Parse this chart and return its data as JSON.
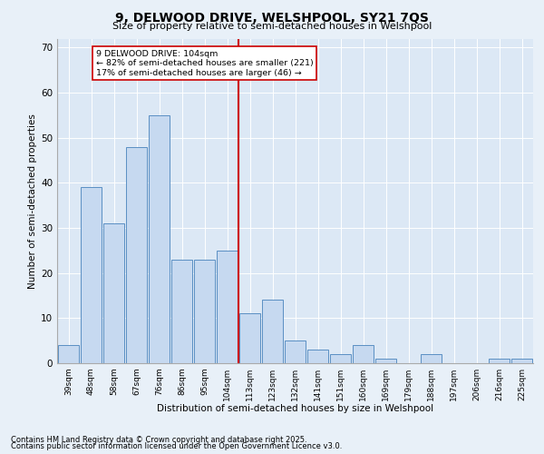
{
  "title1": "9, DELWOOD DRIVE, WELSHPOOL, SY21 7QS",
  "title2": "Size of property relative to semi-detached houses in Welshpool",
  "xlabel": "Distribution of semi-detached houses by size in Welshpool",
  "ylabel": "Number of semi-detached properties",
  "bar_labels": [
    "39sqm",
    "48sqm",
    "58sqm",
    "67sqm",
    "76sqm",
    "86sqm",
    "95sqm",
    "104sqm",
    "113sqm",
    "123sqm",
    "132sqm",
    "141sqm",
    "151sqm",
    "160sqm",
    "169sqm",
    "179sqm",
    "188sqm",
    "197sqm",
    "206sqm",
    "216sqm",
    "225sqm"
  ],
  "bar_values": [
    4,
    39,
    31,
    48,
    55,
    23,
    23,
    25,
    11,
    14,
    5,
    3,
    2,
    4,
    1,
    0,
    2,
    0,
    0,
    1,
    1
  ],
  "bar_color": "#c6d9f0",
  "bar_edge_color": "#5a8fc3",
  "highlight_index": 7,
  "vline_color": "#cc0000",
  "annotation_title": "9 DELWOOD DRIVE: 104sqm",
  "annotation_line1": "← 82% of semi-detached houses are smaller (221)",
  "annotation_line2": "17% of semi-detached houses are larger (46) →",
  "annotation_box_color": "#ffffff",
  "annotation_box_edge_color": "#cc0000",
  "ylim": [
    0,
    72
  ],
  "yticks": [
    0,
    10,
    20,
    30,
    40,
    50,
    60,
    70
  ],
  "footer1": "Contains HM Land Registry data © Crown copyright and database right 2025.",
  "footer2": "Contains public sector information licensed under the Open Government Licence v3.0.",
  "bg_color": "#e8f0f8",
  "plot_bg_color": "#dce8f5"
}
